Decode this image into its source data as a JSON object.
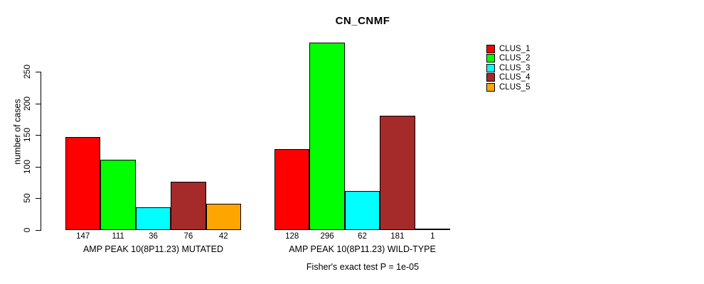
{
  "page": {
    "background": "#FFFFFF"
  },
  "chart_data": {
    "type": "bar",
    "title": "CN_CNMF",
    "ylabel": "number of cases",
    "xlabel": "",
    "ylim": [
      0,
      250
    ],
    "yticks": [
      0,
      50,
      100,
      150,
      200,
      250
    ],
    "grid": false,
    "legend_position": "right-outside-top",
    "series_names": [
      "CLUS_1",
      "CLUS_2",
      "CLUS_3",
      "CLUS_4",
      "CLUS_5"
    ],
    "colors": [
      "#FF0000",
      "#00FF00",
      "#00FFFF",
      "#A52A2A",
      "#FFA500"
    ],
    "groups": [
      {
        "label": "AMP PEAK 10(8P11.23) MUTATED",
        "values": [
          147,
          111,
          36,
          76,
          42
        ]
      },
      {
        "label": "AMP PEAK 10(8P11.23) WILD-TYPE",
        "values": [
          128,
          296,
          62,
          181,
          1
        ]
      }
    ],
    "annotation": "Fisher's exact test P = 1e-05"
  }
}
